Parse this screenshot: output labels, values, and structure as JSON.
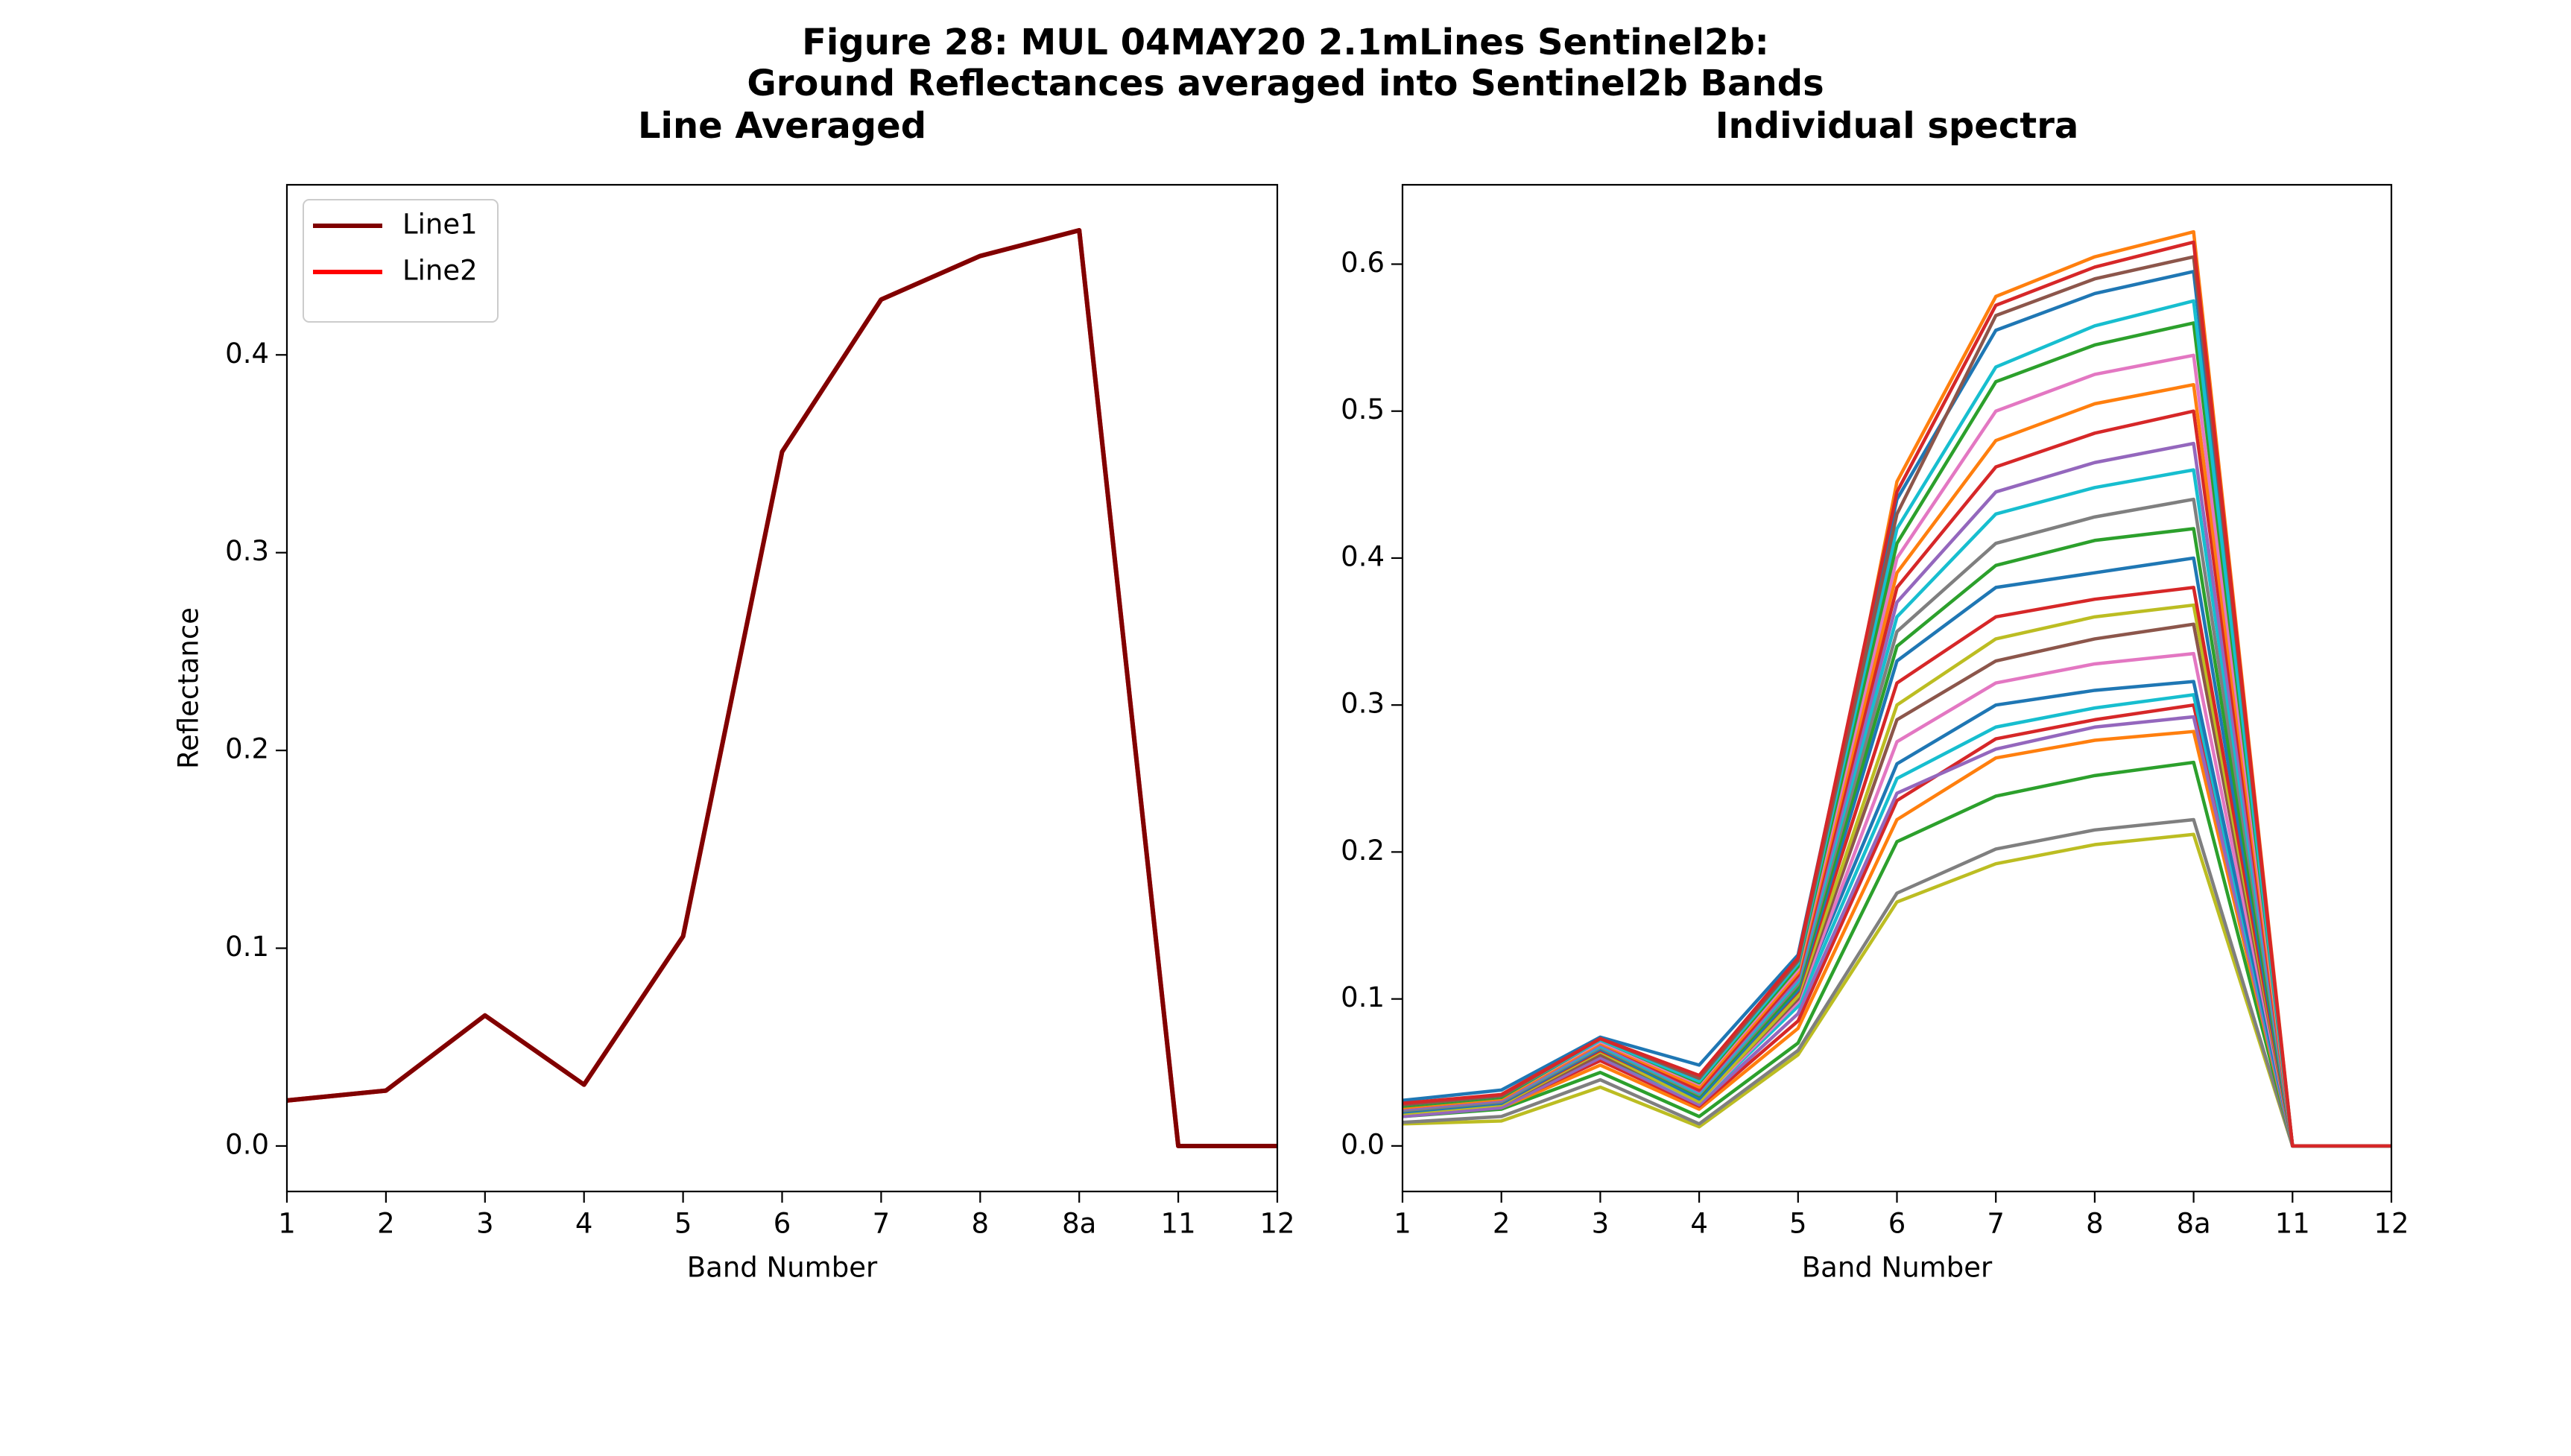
{
  "figure_title": [
    "Figure 28: MUL 04MAY20 2.1mLines Sentinel2b:",
    "Ground Reflectances averaged into Sentinel2b Bands"
  ],
  "chart_data": [
    {
      "type": "line",
      "title": "Line Averaged",
      "xlabel": "Band Number",
      "ylabel": "Reflectance",
      "categories": [
        "1",
        "2",
        "3",
        "4",
        "5",
        "6",
        "7",
        "8",
        "8a",
        "11",
        "12"
      ],
      "ylim": [
        -0.023,
        0.486
      ],
      "yticks": [
        {
          "value": 0,
          "label": "0.0"
        },
        0.1,
        0.2,
        0.3,
        0.4
      ],
      "legend": "upper left",
      "series": [
        {
          "name": "Line1",
          "color": "#800000",
          "values": [
            0.023,
            0.028,
            0.066,
            0.031,
            0.106,
            0.351,
            0.428,
            0.45,
            0.463,
            0,
            0
          ]
        },
        {
          "name": "Line2",
          "color": "#ff0000",
          "values": [
            0.023,
            0.028,
            0.066,
            0.031,
            0.106,
            0.351,
            0.428,
            0.45,
            0.463,
            0,
            0
          ]
        }
      ]
    },
    {
      "type": "line",
      "title": "Individual spectra",
      "xlabel": "Band Number",
      "categories": [
        "1",
        "2",
        "3",
        "4",
        "5",
        "6",
        "7",
        "8",
        "8a",
        "11",
        "12"
      ],
      "ylim": [
        -0.031,
        0.654
      ],
      "yticks": [
        {
          "value": 0,
          "label": "0.0"
        },
        0.1,
        0.2,
        0.3,
        0.4,
        0.5,
        0.6
      ],
      "series": [
        {
          "color": "#1f77b4",
          "values": [
            0.031,
            0.038,
            0.074,
            0.055,
            0.13,
            0.44,
            0.555,
            0.58,
            0.595,
            0,
            0
          ]
        },
        {
          "color": "#ff7f0e",
          "values": [
            0.025,
            0.03,
            0.07,
            0.045,
            0.11,
            0.452,
            0.578,
            0.605,
            0.622,
            0,
            0
          ]
        },
        {
          "color": "#bcbd22",
          "values": [
            0.015,
            0.017,
            0.04,
            0.013,
            0.062,
            0.166,
            0.192,
            0.205,
            0.212,
            0,
            0
          ]
        },
        {
          "color": "#7f7f7f",
          "values": [
            0.016,
            0.02,
            0.045,
            0.015,
            0.065,
            0.172,
            0.202,
            0.215,
            0.222,
            0,
            0
          ]
        },
        {
          "color": "#2ca02c",
          "values": [
            0.02,
            0.025,
            0.05,
            0.02,
            0.07,
            0.207,
            0.238,
            0.252,
            0.261,
            0,
            0
          ]
        },
        {
          "color": "#ff7f0e",
          "values": [
            0.022,
            0.026,
            0.055,
            0.025,
            0.08,
            0.222,
            0.264,
            0.276,
            0.282,
            0,
            0
          ]
        },
        {
          "color": "#d62728",
          "values": [
            0.021,
            0.027,
            0.058,
            0.027,
            0.085,
            0.235,
            0.277,
            0.29,
            0.3,
            0,
            0
          ]
        },
        {
          "color": "#9467bd",
          "values": [
            0.02,
            0.026,
            0.06,
            0.028,
            0.09,
            0.24,
            0.27,
            0.285,
            0.292,
            0,
            0
          ]
        },
        {
          "color": "#17becf",
          "values": [
            0.023,
            0.029,
            0.062,
            0.03,
            0.095,
            0.25,
            0.285,
            0.298,
            0.307,
            0,
            0
          ]
        },
        {
          "color": "#1f77b4",
          "values": [
            0.024,
            0.03,
            0.064,
            0.032,
            0.1,
            0.26,
            0.3,
            0.31,
            0.316,
            0,
            0
          ]
        },
        {
          "color": "#e377c2",
          "values": [
            0.022,
            0.028,
            0.063,
            0.03,
            0.098,
            0.275,
            0.315,
            0.328,
            0.335,
            0,
            0
          ]
        },
        {
          "color": "#8c564b",
          "values": [
            0.023,
            0.028,
            0.062,
            0.031,
            0.1,
            0.29,
            0.33,
            0.345,
            0.355,
            0,
            0
          ]
        },
        {
          "color": "#bcbd22",
          "values": [
            0.022,
            0.028,
            0.064,
            0.03,
            0.102,
            0.3,
            0.345,
            0.36,
            0.368,
            0,
            0
          ]
        },
        {
          "color": "#d62728",
          "values": [
            0.024,
            0.029,
            0.065,
            0.033,
            0.105,
            0.315,
            0.36,
            0.372,
            0.38,
            0,
            0
          ]
        },
        {
          "color": "#1f77b4",
          "values": [
            0.023,
            0.029,
            0.066,
            0.032,
            0.106,
            0.33,
            0.38,
            0.39,
            0.4,
            0,
            0
          ]
        },
        {
          "color": "#2ca02c",
          "values": [
            0.024,
            0.03,
            0.067,
            0.034,
            0.108,
            0.34,
            0.395,
            0.412,
            0.42,
            0,
            0
          ]
        },
        {
          "color": "#7f7f7f",
          "values": [
            0.024,
            0.03,
            0.067,
            0.035,
            0.11,
            0.35,
            0.41,
            0.428,
            0.44,
            0,
            0
          ]
        },
        {
          "color": "#17becf",
          "values": [
            0.025,
            0.031,
            0.068,
            0.036,
            0.112,
            0.36,
            0.43,
            0.448,
            0.46,
            0,
            0
          ]
        },
        {
          "color": "#9467bd",
          "values": [
            0.025,
            0.031,
            0.069,
            0.037,
            0.114,
            0.37,
            0.445,
            0.465,
            0.478,
            0,
            0
          ]
        },
        {
          "color": "#d62728",
          "values": [
            0.026,
            0.032,
            0.07,
            0.038,
            0.116,
            0.38,
            0.462,
            0.485,
            0.5,
            0,
            0
          ]
        },
        {
          "color": "#ff7f0e",
          "values": [
            0.026,
            0.032,
            0.07,
            0.04,
            0.118,
            0.39,
            0.48,
            0.505,
            0.518,
            0,
            0
          ]
        },
        {
          "color": "#e377c2",
          "values": [
            0.027,
            0.033,
            0.071,
            0.042,
            0.12,
            0.4,
            0.5,
            0.525,
            0.538,
            0,
            0
          ]
        },
        {
          "color": "#2ca02c",
          "values": [
            0.027,
            0.033,
            0.072,
            0.043,
            0.122,
            0.41,
            0.52,
            0.545,
            0.56,
            0,
            0
          ]
        },
        {
          "color": "#17becf",
          "values": [
            0.028,
            0.034,
            0.072,
            0.044,
            0.124,
            0.42,
            0.53,
            0.558,
            0.575,
            0,
            0
          ]
        },
        {
          "color": "#8c564b",
          "values": [
            0.028,
            0.034,
            0.073,
            0.046,
            0.126,
            0.43,
            0.565,
            0.59,
            0.605,
            0,
            0
          ]
        },
        {
          "color": "#d62728",
          "values": [
            0.029,
            0.035,
            0.073,
            0.048,
            0.128,
            0.445,
            0.572,
            0.598,
            0.615,
            0,
            0
          ]
        }
      ]
    }
  ]
}
